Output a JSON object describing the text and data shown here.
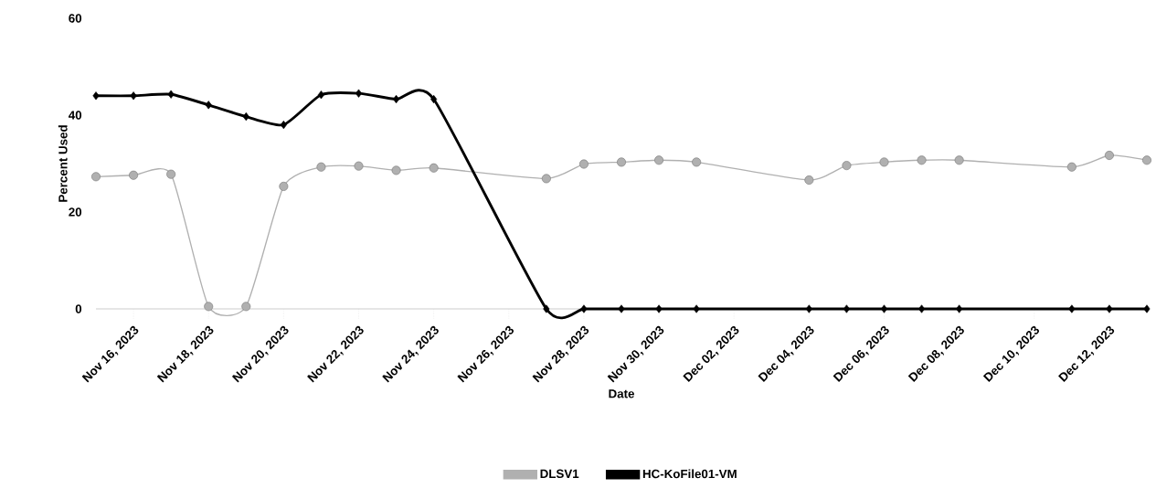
{
  "chart_data": {
    "type": "line",
    "xlabel": "Date",
    "ylabel": "Percent Used",
    "x": [
      "2023-11-15",
      "2023-11-16",
      "2023-11-17",
      "2023-11-18",
      "2023-11-19",
      "2023-11-20",
      "2023-11-21",
      "2023-11-22",
      "2023-11-23",
      "2023-11-24",
      "2023-11-27",
      "2023-11-28",
      "2023-11-29",
      "2023-11-30",
      "2023-12-01",
      "2023-12-04",
      "2023-12-05",
      "2023-12-06",
      "2023-12-07",
      "2023-12-08",
      "2023-12-11",
      "2023-12-12",
      "2023-12-13"
    ],
    "series": [
      {
        "name": "DLSV1",
        "color": "#b0b0b0",
        "marker": "circle",
        "values": [
          27.3,
          27.6,
          27.8,
          0.5,
          0.5,
          25.3,
          29.3,
          29.5,
          28.6,
          29.1,
          26.9,
          29.9,
          30.3,
          30.7,
          30.3,
          26.6,
          29.6,
          30.3,
          30.7,
          30.7,
          29.3,
          31.7,
          30.7
        ]
      },
      {
        "name": "HC-KoFile01-VM",
        "color": "#000000",
        "marker": "diamond",
        "values": [
          44,
          44,
          44.3,
          42.1,
          39.7,
          38,
          44.2,
          44.5,
          43.3,
          43.3,
          0,
          0,
          0,
          0,
          0,
          0,
          0,
          0,
          0,
          0,
          0,
          0,
          0
        ]
      }
    ],
    "xlim": [
      "2023-11-15",
      "2023-12-13"
    ],
    "xticks": [
      {
        "value": "2023-11-16",
        "label": "Nov 16, 2023"
      },
      {
        "value": "2023-11-18",
        "label": "Nov 18, 2023"
      },
      {
        "value": "2023-11-20",
        "label": "Nov 20, 2023"
      },
      {
        "value": "2023-11-22",
        "label": "Nov 22, 2023"
      },
      {
        "value": "2023-11-24",
        "label": "Nov 24, 2023"
      },
      {
        "value": "2023-11-26",
        "label": "Nov 26, 2023"
      },
      {
        "value": "2023-11-28",
        "label": "Nov 28, 2023"
      },
      {
        "value": "2023-11-30",
        "label": "Nov 30, 2023"
      },
      {
        "value": "2023-12-02",
        "label": "Dec 02, 2023"
      },
      {
        "value": "2023-12-04",
        "label": "Dec 04, 2023"
      },
      {
        "value": "2023-12-06",
        "label": "Dec 06, 2023"
      },
      {
        "value": "2023-12-08",
        "label": "Dec 08, 2023"
      },
      {
        "value": "2023-12-10",
        "label": "Dec 10, 2023"
      },
      {
        "value": "2023-12-12",
        "label": "Dec 12, 2023"
      }
    ],
    "ylim": [
      0,
      60
    ],
    "yticks": [
      0,
      20,
      40,
      60
    ],
    "grid": false,
    "legend": "bottom"
  }
}
